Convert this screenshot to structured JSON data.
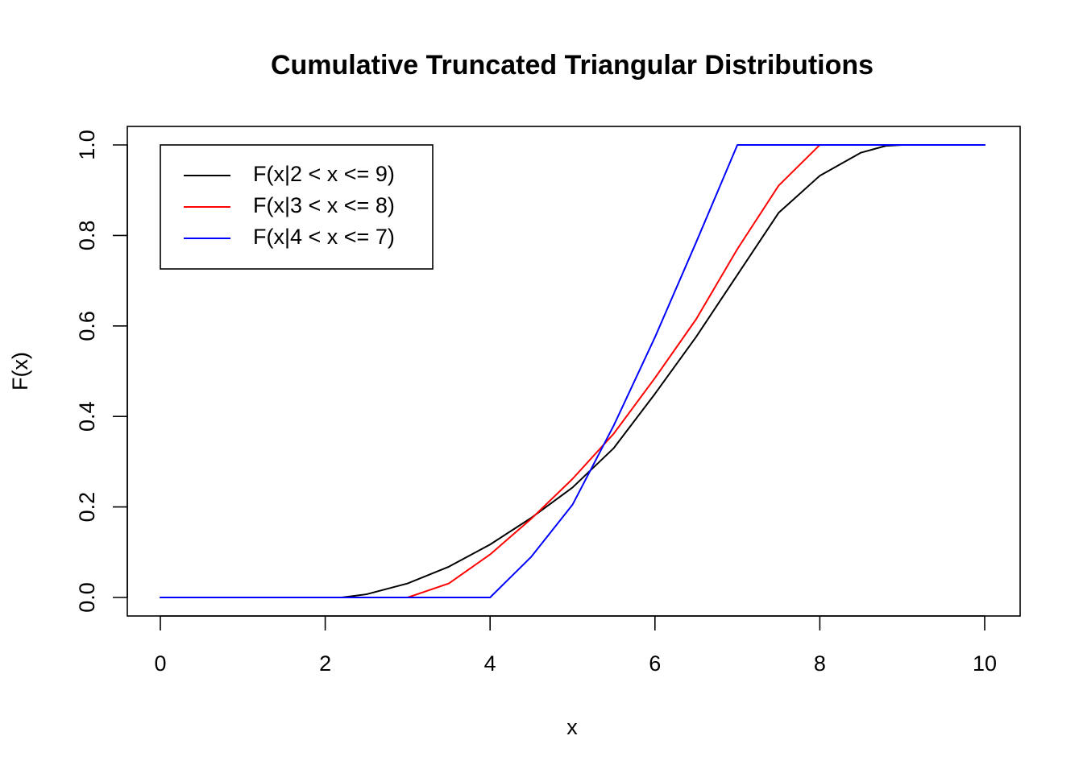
{
  "chart_data": {
    "type": "line",
    "title": "Cumulative Truncated Triangular Distributions",
    "xlabel": "x",
    "ylabel": "F(x)",
    "xlim": [
      0,
      10
    ],
    "ylim": [
      0,
      1
    ],
    "x_ticks": [
      "0",
      "2",
      "4",
      "6",
      "8",
      "10"
    ],
    "y_ticks": [
      "0.0",
      "0.2",
      "0.4",
      "0.6",
      "0.8",
      "1.0"
    ],
    "grid": false,
    "legend_position": "top-left",
    "series": [
      {
        "name": "F(x|2 < x <= 9)",
        "color": "#000000",
        "x": [
          0,
          2,
          2.2,
          2.5,
          3,
          3.5,
          4,
          4.5,
          5,
          5.5,
          6,
          6.5,
          7,
          7.5,
          8,
          8.5,
          8.8,
          9,
          10
        ],
        "y": [
          0,
          0,
          0.0,
          0.007,
          0.031,
          0.068,
          0.117,
          0.176,
          0.243,
          0.33,
          0.45,
          0.576,
          0.713,
          0.85,
          0.932,
          0.983,
          0.998,
          1.0,
          1.0
        ]
      },
      {
        "name": "F(x|3 < x <= 8)",
        "color": "#ff0000",
        "x": [
          0,
          3,
          3.5,
          4,
          4.5,
          5,
          5.5,
          6,
          6.5,
          7,
          7.5,
          8,
          10
        ],
        "y": [
          0,
          0,
          0.031,
          0.095,
          0.174,
          0.262,
          0.362,
          0.485,
          0.615,
          0.77,
          0.91,
          1.0,
          1.0
        ]
      },
      {
        "name": "F(x|4 < x <= 7)",
        "color": "#0000ff",
        "x": [
          0,
          4,
          4.5,
          5,
          5.5,
          6,
          6.5,
          7,
          10
        ],
        "y": [
          0,
          0,
          0.09,
          0.205,
          0.38,
          0.575,
          0.785,
          1.0,
          1.0
        ]
      }
    ]
  }
}
